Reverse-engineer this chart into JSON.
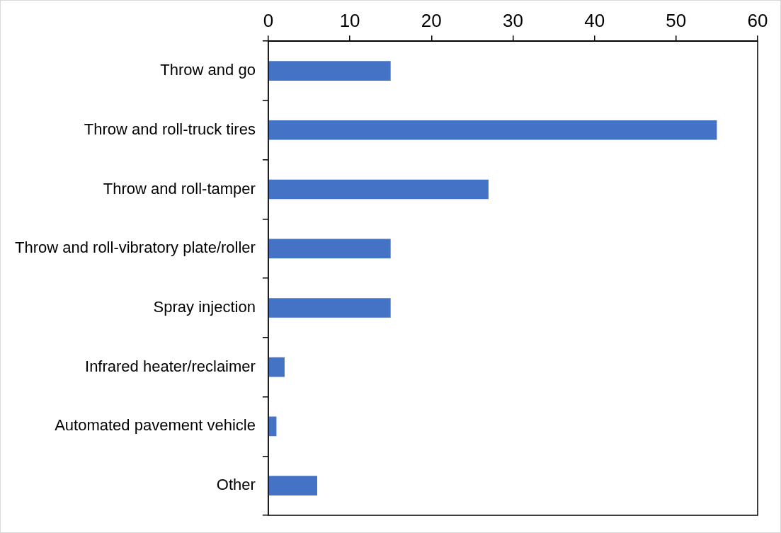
{
  "chart_data": {
    "type": "bar",
    "orientation": "horizontal",
    "categories": [
      "Throw and go",
      "Throw and roll-truck tires",
      "Throw and roll-tamper",
      "Throw and roll-vibratory plate/roller",
      "Spray injection",
      "Infrared heater/reclaimer",
      "Automated pavement vehicle",
      "Other"
    ],
    "values": [
      15,
      55,
      27,
      15,
      15,
      2,
      1,
      6
    ],
    "color": "#4472c4",
    "xlim": [
      0,
      60
    ],
    "xticks": [
      0,
      10,
      20,
      30,
      40,
      50,
      60
    ],
    "grid": false,
    "legend": false
  }
}
